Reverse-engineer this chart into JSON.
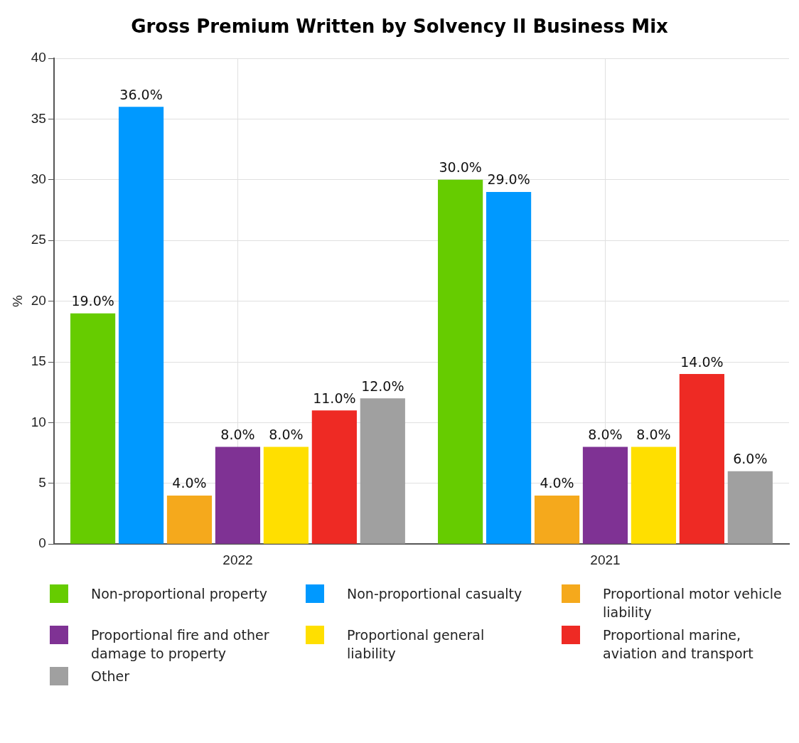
{
  "chart_data": {
    "type": "bar",
    "title": "Gross Premium Written by Solvency II Business Mix",
    "ylabel": "%",
    "categories": [
      "2022",
      "2021"
    ],
    "series": [
      {
        "name": "Non-proportional property",
        "color": "#66cc00",
        "values": [
          19,
          30
        ],
        "value_labels": [
          "19.0%",
          "30.0%"
        ]
      },
      {
        "name": "Non-proportional casualty",
        "color": "#0099ff",
        "values": [
          36,
          29
        ],
        "value_labels": [
          "36.0%",
          "29.0%"
        ]
      },
      {
        "name": "Proportional motor vehicle liability",
        "color": "#f5a91c",
        "values": [
          4,
          4
        ],
        "value_labels": [
          "4.0%",
          "4.0%"
        ]
      },
      {
        "name": "Proportional fire and other damage to property",
        "color": "#7f3294",
        "values": [
          8,
          8
        ],
        "value_labels": [
          "8.0%",
          "8.0%"
        ]
      },
      {
        "name": "Proportional general liability",
        "color": "#ffdf00",
        "values": [
          8,
          8
        ],
        "value_labels": [
          "8.0%",
          "8.0%"
        ]
      },
      {
        "name": "Proportional marine, aviation and transport",
        "color": "#ee2a24",
        "values": [
          11,
          14
        ],
        "value_labels": [
          "11.0%",
          "14.0%"
        ]
      },
      {
        "name": "Other",
        "color": "#a0a0a0",
        "values": [
          12,
          6
        ],
        "value_labels": [
          "12.0%",
          "6.0%"
        ]
      }
    ],
    "ylim": [
      0,
      40
    ],
    "yticks": [
      0,
      5,
      10,
      15,
      20,
      25,
      30,
      35,
      40
    ],
    "grid": true,
    "legend": "bottom"
  }
}
